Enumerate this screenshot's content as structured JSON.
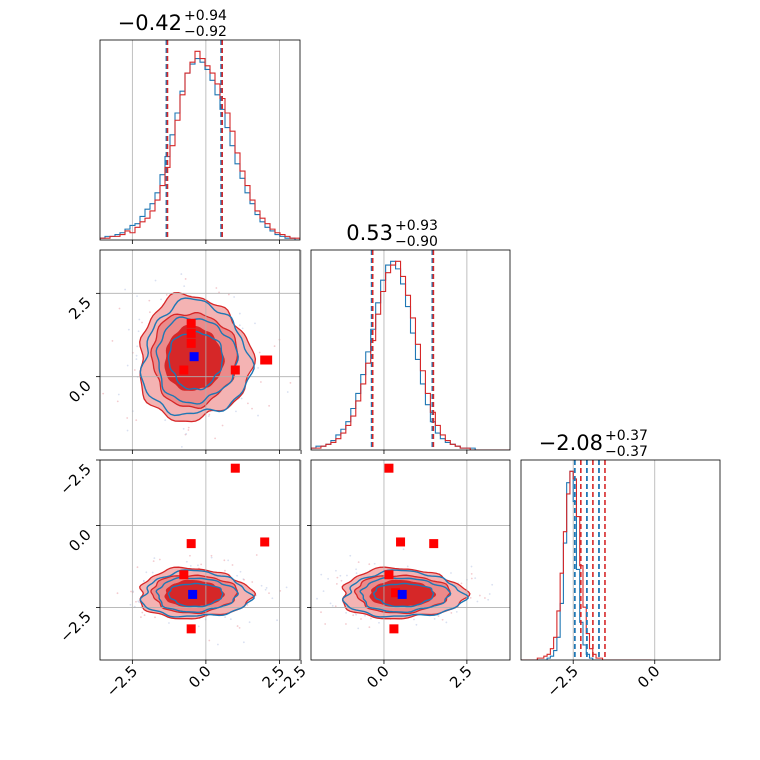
{
  "chart_data": {
    "type": "corner",
    "colors": {
      "red": "#d62728",
      "blue": "#1f77b4",
      "marker_red": "#ff0000",
      "marker_blue": "#0000ff"
    },
    "params": [
      {
        "title_main": "−0.42",
        "title_sup": "+0.94",
        "title_sub": "−0.92",
        "median": -0.42,
        "lo": -1.34,
        "hi": 0.52,
        "range": [
          -3.6,
          3.2
        ]
      },
      {
        "title_main": "0.53",
        "title_sup": "+0.93",
        "title_sub": "−0.90",
        "median": 0.53,
        "lo": -0.37,
        "hi": 1.46,
        "range": [
          -2.2,
          3.8
        ]
      },
      {
        "title_main": "−2.08",
        "title_sup": "+0.37",
        "title_sub": "−0.37",
        "median": -2.08,
        "lo": -2.45,
        "hi": -1.71,
        "range": [
          -4.1,
          2.0
        ]
      }
    ],
    "ticks": {
      "x": [
        [
          "−2.5",
          "0.0",
          "2.5"
        ],
        [
          "−2.5",
          "0.0",
          "2.5"
        ],
        [
          "−2.5",
          "0.0"
        ]
      ],
      "y": [
        [
          "−2.5",
          "0.0",
          "2.5"
        ],
        [
          "−2.5",
          "0.0"
        ]
      ]
    },
    "tick_values": {
      "x": [
        [
          -2.5,
          0.0,
          2.5
        ],
        [
          -2.5,
          0.0,
          2.5
        ],
        [
          -2.5,
          0.0
        ]
      ],
      "y": [
        [
          -2.5,
          0.0,
          2.5
        ],
        [
          -2.5,
          0.0
        ]
      ]
    },
    "histograms": [
      {
        "bin_edges_start": -3.6,
        "bin_width": 0.17,
        "red": [
          1,
          1,
          2,
          2,
          3,
          5,
          4,
          7,
          10,
          12,
          16,
          22,
          30,
          40,
          52,
          66,
          80,
          92,
          98,
          104,
          100,
          96,
          92,
          86,
          78,
          70,
          60,
          48,
          38,
          30,
          22,
          16,
          12,
          9,
          6,
          4,
          3,
          2,
          1,
          1
        ],
        "blue": [
          1,
          2,
          2,
          3,
          4,
          6,
          8,
          9,
          13,
          17,
          20,
          26,
          36,
          46,
          58,
          70,
          82,
          92,
          97,
          100,
          98,
          94,
          88,
          80,
          72,
          62,
          52,
          42,
          34,
          26,
          20,
          14,
          10,
          7,
          5,
          3,
          2,
          1,
          1,
          0
        ]
      },
      {
        "bin_edges_start": -2.2,
        "bin_width": 0.15,
        "red": [
          1,
          1,
          2,
          3,
          4,
          6,
          9,
          13,
          18,
          26,
          35,
          46,
          58,
          72,
          84,
          94,
          98,
          100,
          92,
          82,
          70,
          56,
          42,
          30,
          20,
          13,
          8,
          5,
          3,
          2,
          1,
          1,
          0,
          0,
          0,
          0,
          0,
          0,
          0,
          0
        ],
        "blue": [
          1,
          2,
          2,
          3,
          5,
          8,
          11,
          15,
          22,
          30,
          40,
          52,
          64,
          78,
          90,
          98,
          100,
          96,
          88,
          76,
          62,
          48,
          35,
          24,
          15,
          9,
          6,
          4,
          3,
          2,
          1,
          1,
          1,
          0,
          0,
          0,
          0,
          0,
          0,
          0
        ]
      },
      {
        "bin_edges_start": -4.1,
        "bin_width": 0.1,
        "red": [
          0,
          0,
          0,
          0,
          0,
          1,
          1,
          2,
          3,
          6,
          12,
          26,
          46,
          68,
          88,
          100,
          96,
          76,
          50,
          28,
          14,
          6,
          3,
          1,
          1,
          0,
          0,
          0,
          0,
          0,
          0,
          0,
          0,
          0,
          0,
          0,
          0,
          0,
          0,
          0
        ],
        "blue": [
          0,
          0,
          0,
          0,
          0,
          0,
          0,
          0,
          1,
          2,
          5,
          12,
          30,
          62,
          94,
          100,
          84,
          48,
          20,
          8,
          3,
          1,
          0,
          0,
          0,
          0,
          0,
          0,
          0,
          0,
          0,
          0,
          0,
          0,
          0,
          0,
          0,
          0,
          0,
          0
        ]
      }
    ],
    "contour_panels": [
      {
        "x_param": 0,
        "y_param": 1,
        "red_markers": [
          [
            -0.5,
            1.6
          ],
          [
            -0.5,
            1.3
          ],
          [
            -0.5,
            1.0
          ],
          [
            -0.75,
            0.2
          ],
          [
            1.0,
            0.2
          ],
          [
            2.0,
            0.5
          ],
          [
            2.1,
            0.5
          ]
        ],
        "blue_markers": [
          [
            -0.4,
            0.6
          ]
        ],
        "center": [
          -0.42,
          0.53
        ],
        "sd": [
          0.93,
          0.91
        ]
      },
      {
        "x_param": 0,
        "y_param": 2,
        "red_markers": [
          [
            1.0,
            1.75
          ],
          [
            -0.5,
            -0.55
          ],
          [
            2.0,
            -0.5
          ],
          [
            -0.75,
            -1.5
          ],
          [
            -0.5,
            -3.15
          ]
        ],
        "blue_markers": [
          [
            -0.45,
            -2.1
          ]
        ],
        "center": [
          -0.42,
          -2.08
        ],
        "sd": [
          0.93,
          0.37
        ]
      },
      {
        "x_param": 1,
        "y_param": 2,
        "red_markers": [
          [
            0.15,
            1.75
          ],
          [
            0.5,
            -0.5
          ],
          [
            1.5,
            -0.55
          ],
          [
            0.15,
            -1.5
          ],
          [
            0.3,
            -3.15
          ],
          [
            0.35,
            -2.05
          ]
        ],
        "blue_markers": [
          [
            0.55,
            -2.1
          ]
        ],
        "center": [
          0.53,
          -2.08
        ],
        "sd": [
          0.91,
          0.37
        ]
      }
    ],
    "grid": true
  }
}
